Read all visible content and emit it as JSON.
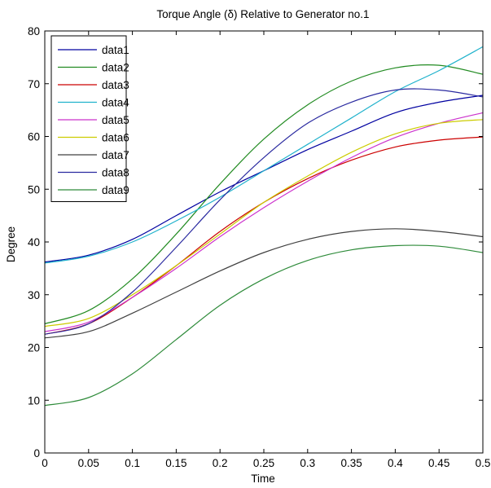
{
  "chart_data": {
    "type": "line",
    "title": "Torque Angle (δ) Relative to Generator no.1",
    "xlabel": "Time",
    "ylabel": "Degree",
    "xlim": [
      0,
      0.5
    ],
    "ylim": [
      0,
      80
    ],
    "xticks": [
      "0",
      "0.05",
      "0.1",
      "0.15",
      "0.2",
      "0.25",
      "0.3",
      "0.35",
      "0.4",
      "0.45",
      "0.5"
    ],
    "yticks": [
      "0",
      "10",
      "20",
      "30",
      "40",
      "50",
      "60",
      "70",
      "80"
    ],
    "grid": false,
    "legend_position": "top-left",
    "x": [
      0,
      0.05,
      0.1,
      0.15,
      0.2,
      0.25,
      0.3,
      0.35,
      0.4,
      0.45,
      0.5
    ],
    "series": [
      {
        "name": "data1",
        "color": "#0000a0",
        "values": [
          36.2,
          37.5,
          40.5,
          45.0,
          49.5,
          53.5,
          57.5,
          61.0,
          64.5,
          66.5,
          67.8
        ]
      },
      {
        "name": "data2",
        "color": "#228b22",
        "values": [
          24.5,
          27.0,
          33.0,
          41.5,
          51.0,
          59.5,
          66.0,
          70.5,
          73.0,
          73.5,
          71.8
        ]
      },
      {
        "name": "data3",
        "color": "#cc0000",
        "values": [
          22.5,
          24.5,
          29.5,
          35.5,
          42.0,
          47.5,
          52.0,
          55.5,
          58.0,
          59.3,
          59.9
        ]
      },
      {
        "name": "data4",
        "color": "#20b2cc",
        "values": [
          36.0,
          37.3,
          40.0,
          44.0,
          48.5,
          53.5,
          58.5,
          63.5,
          68.5,
          72.5,
          77.0
        ]
      },
      {
        "name": "data5",
        "color": "#cc33cc",
        "values": [
          23.0,
          24.8,
          29.5,
          35.0,
          41.0,
          46.5,
          51.5,
          56.0,
          59.8,
          62.5,
          64.5
        ]
      },
      {
        "name": "data6",
        "color": "#cccc00",
        "values": [
          24.0,
          25.5,
          30.0,
          35.5,
          41.5,
          47.5,
          52.5,
          57.0,
          60.5,
          62.5,
          63.2
        ]
      },
      {
        "name": "data7",
        "color": "#404040",
        "values": [
          21.8,
          23.0,
          26.5,
          30.5,
          34.5,
          38.0,
          40.5,
          42.0,
          42.5,
          42.0,
          41.0
        ]
      },
      {
        "name": "data8",
        "color": "#2a2aa0",
        "values": [
          22.5,
          24.5,
          30.5,
          39.0,
          48.0,
          56.0,
          62.5,
          66.5,
          68.8,
          68.8,
          67.5
        ]
      },
      {
        "name": "data9",
        "color": "#2e8b3a",
        "values": [
          9.0,
          10.5,
          15.0,
          21.5,
          28.0,
          33.0,
          36.5,
          38.5,
          39.3,
          39.2,
          38.0
        ]
      }
    ]
  }
}
